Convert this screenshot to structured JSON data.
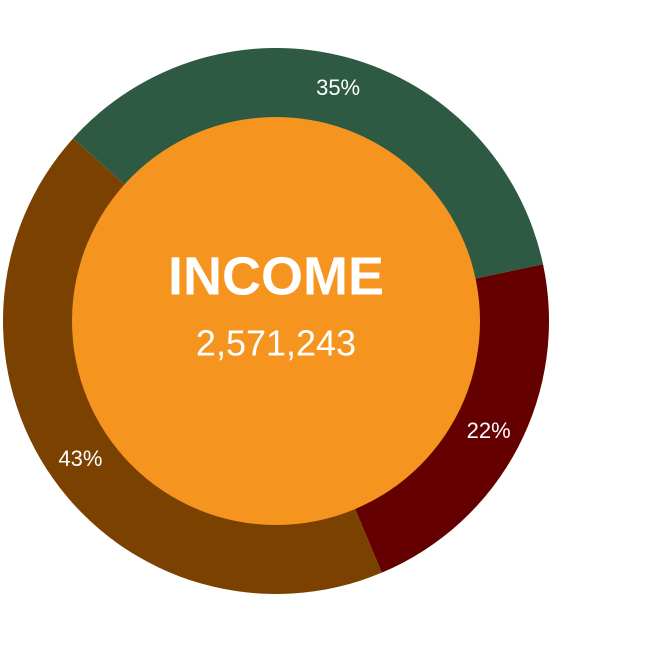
{
  "chart_data": {
    "type": "donut",
    "center_title": "INCOME",
    "center_total": {
      "value": 2571243,
      "label": "2,571,243"
    },
    "values": [
      35,
      22,
      43
    ],
    "value_labels": [
      "35%",
      "22%",
      "43%"
    ],
    "colors": [
      "#2e5a43",
      "#650000",
      "#7a4100"
    ],
    "center_color": "#f5951f"
  }
}
